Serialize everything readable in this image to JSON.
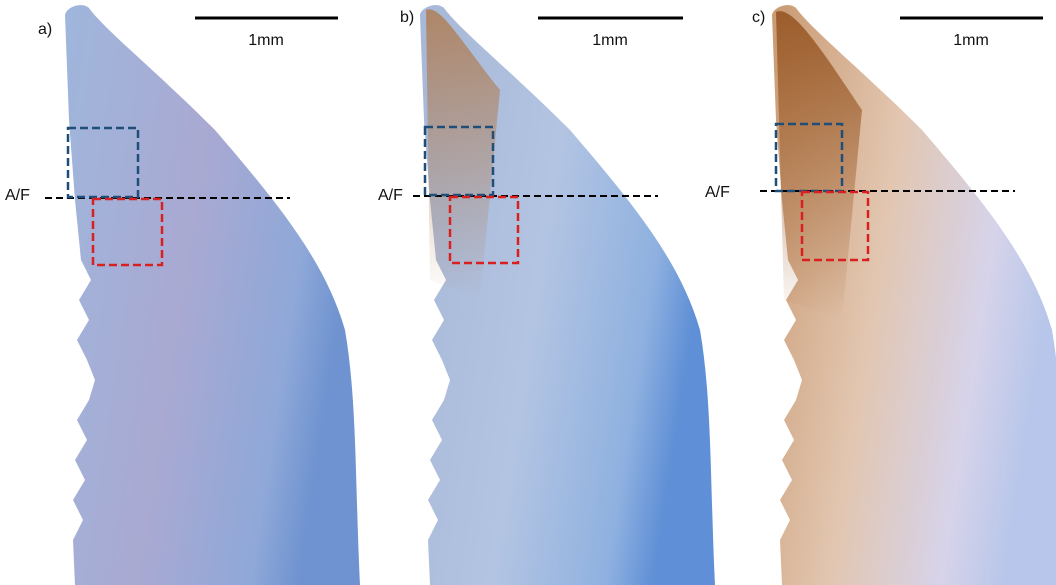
{
  "panels": [
    {
      "label": "a)",
      "scale": "1mm",
      "boundary": "A/F"
    },
    {
      "label": "b)",
      "scale": "1mm",
      "boundary": "A/F"
    },
    {
      "label": "c)",
      "scale": "1mm",
      "boundary": "A/F"
    }
  ]
}
